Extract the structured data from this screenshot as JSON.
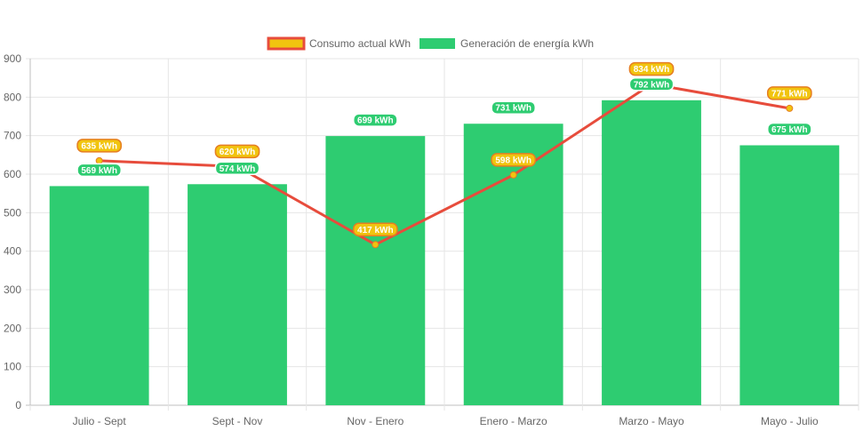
{
  "chart_data": {
    "type": "bar",
    "categories": [
      "Julio - Sept",
      "Sept - Nov",
      "Nov - Enero",
      "Enero - Marzo",
      "Marzo - Mayo",
      "Mayo - Julio"
    ],
    "series": [
      {
        "name": "Consumo actual kWh",
        "type": "line",
        "values": [
          635,
          620,
          417,
          598,
          834,
          771
        ],
        "labels": [
          "635 kWh",
          "620 kWh",
          "417 kWh",
          "598 kWh",
          "834 kWh",
          "771 kWh"
        ],
        "color": "#e74c3c",
        "fill": "#f1c40f"
      },
      {
        "name": "Generación de energía kWh",
        "type": "bar",
        "values": [
          569,
          574,
          699,
          731,
          792,
          675
        ],
        "labels": [
          "569 kWh",
          "574 kWh",
          "699 kWh",
          "731 kWh",
          "792 kWh",
          "675 kWh"
        ],
        "color": "#2ecc71"
      }
    ],
    "yticks": [
      "0",
      "100",
      "200",
      "300",
      "400",
      "500",
      "600",
      "700",
      "800",
      "900"
    ],
    "ylim": [
      0,
      900
    ],
    "grid": true,
    "legend": "top-center"
  }
}
